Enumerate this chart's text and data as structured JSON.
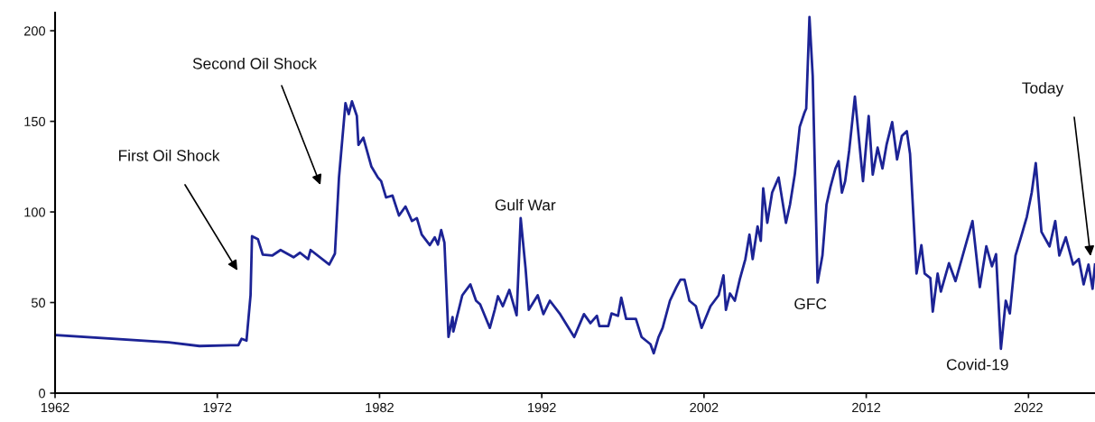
{
  "chart_data": {
    "type": "line",
    "x": [
      1962.1,
      1969.0,
      1970.9,
      1973.3,
      1973.5,
      1973.8,
      1974.05,
      1974.14,
      1974.5,
      1974.8,
      1975.4,
      1975.9,
      1976.7,
      1977.1,
      1977.6,
      1977.75,
      1978.9,
      1979.25,
      1979.5,
      1979.9,
      1980.1,
      1980.3,
      1980.6,
      1980.7,
      1981.0,
      1981.5,
      1981.9,
      1982.1,
      1982.4,
      1982.8,
      1983.2,
      1983.6,
      1984.0,
      1984.3,
      1984.6,
      1985.1,
      1985.4,
      1985.6,
      1985.8,
      1986.0,
      1986.25,
      1986.5,
      1986.55,
      1987.1,
      1987.6,
      1987.95,
      1988.2,
      1988.8,
      1989.1,
      1989.3,
      1989.6,
      1990.0,
      1990.45,
      1990.7,
      1991.0,
      1991.2,
      1991.75,
      1992.1,
      1992.5,
      1993.1,
      1994.0,
      1994.6,
      1995.0,
      1995.4,
      1995.55,
      1996.1,
      1996.3,
      1996.7,
      1996.9,
      1997.2,
      1997.8,
      1998.15,
      1998.7,
      1998.9,
      1999.2,
      1999.45,
      1999.9,
      2000.3,
      2000.55,
      2000.8,
      2001.1,
      2001.5,
      2001.85,
      2002.4,
      2002.9,
      2003.2,
      2003.35,
      2003.6,
      2003.9,
      2004.2,
      2004.55,
      2004.8,
      2005.0,
      2005.3,
      2005.5,
      2005.65,
      2005.9,
      2006.2,
      2006.6,
      2007.05,
      2007.3,
      2007.6,
      2007.9,
      2008.2,
      2008.3,
      2008.5,
      2008.7,
      2009.0,
      2009.3,
      2009.55,
      2009.8,
      2010.1,
      2010.3,
      2010.5,
      2010.7,
      2010.95,
      2011.3,
      2011.8,
      2012.15,
      2012.4,
      2012.7,
      2013.0,
      2013.25,
      2013.6,
      2013.9,
      2014.2,
      2014.5,
      2014.7,
      2015.1,
      2015.4,
      2015.6,
      2015.95,
      2016.1,
      2016.4,
      2016.6,
      2017.1,
      2017.5,
      2018.2,
      2018.55,
      2019.0,
      2019.4,
      2019.75,
      2020.0,
      2020.3,
      2020.6,
      2020.85,
      2021.2,
      2021.6,
      2021.9,
      2022.2,
      2022.45,
      2022.8,
      2023.3,
      2023.65,
      2023.9,
      2024.3,
      2024.75,
      2025.1,
      2025.4,
      2025.7,
      2025.95,
      2026.1
    ],
    "series": [
      {
        "color": "#1c2395",
        "values": [
          32,
          28,
          26,
          26.5,
          30,
          29,
          54,
          86.6,
          85,
          76.5,
          76,
          79,
          75,
          77.5,
          74,
          79,
          71,
          77,
          119,
          160,
          154,
          161,
          153,
          137,
          141,
          125,
          119,
          117,
          108,
          109,
          98,
          103,
          95,
          96.6,
          87.5,
          81.7,
          86,
          82,
          90,
          83,
          31,
          42,
          34,
          54,
          60,
          51,
          49,
          36,
          46,
          53.5,
          48,
          57,
          43,
          96.6,
          69,
          46,
          54,
          43.6,
          51,
          44,
          31,
          43.6,
          38.6,
          42.7,
          37,
          37,
          44,
          42.7,
          52.7,
          41,
          41,
          31,
          27,
          22,
          31,
          36,
          51,
          58.5,
          62.6,
          62.6,
          51,
          48,
          36,
          48,
          54,
          65,
          46,
          55,
          51,
          62.6,
          74,
          87.5,
          74,
          92,
          84,
          113,
          94,
          110.7,
          119,
          94,
          104,
          121,
          147,
          155,
          157,
          207.6,
          175,
          61,
          76,
          104,
          114,
          124,
          128,
          110.7,
          117,
          134,
          163.7,
          117,
          153,
          120.6,
          135.5,
          124,
          137,
          149.6,
          129,
          142,
          144.6,
          132,
          66,
          81.7,
          66,
          63.5,
          45,
          66,
          56,
          71.7,
          61.8,
          84,
          95,
          58.5,
          81,
          70,
          76.7,
          24.5,
          51,
          44,
          76,
          88,
          97.4,
          110.7,
          127,
          89,
          81,
          95,
          76,
          86,
          71,
          74,
          60,
          71,
          57.6,
          71
        ]
      }
    ],
    "xlim": [
      1962,
      2026.1
    ],
    "xticks": [
      1962,
      1972,
      1982,
      1992,
      2002,
      2012,
      2022
    ],
    "ylim": [
      0,
      210
    ],
    "yticks": [
      0,
      50,
      100,
      150,
      200
    ],
    "grid": false,
    "legend": false,
    "marker": "none",
    "line_style": "solid",
    "annotations": [
      "First Oil Shock",
      "Second Oil Shock",
      {
        "text": "Gulf War",
        "x": 1990.7,
        "y": 96.6
      },
      {
        "text": "GFC",
        "x": 2009.0,
        "y": 61
      },
      {
        "text": "Covid-19",
        "x": 2020.3,
        "y": 24.5
      },
      "Today"
    ]
  }
}
